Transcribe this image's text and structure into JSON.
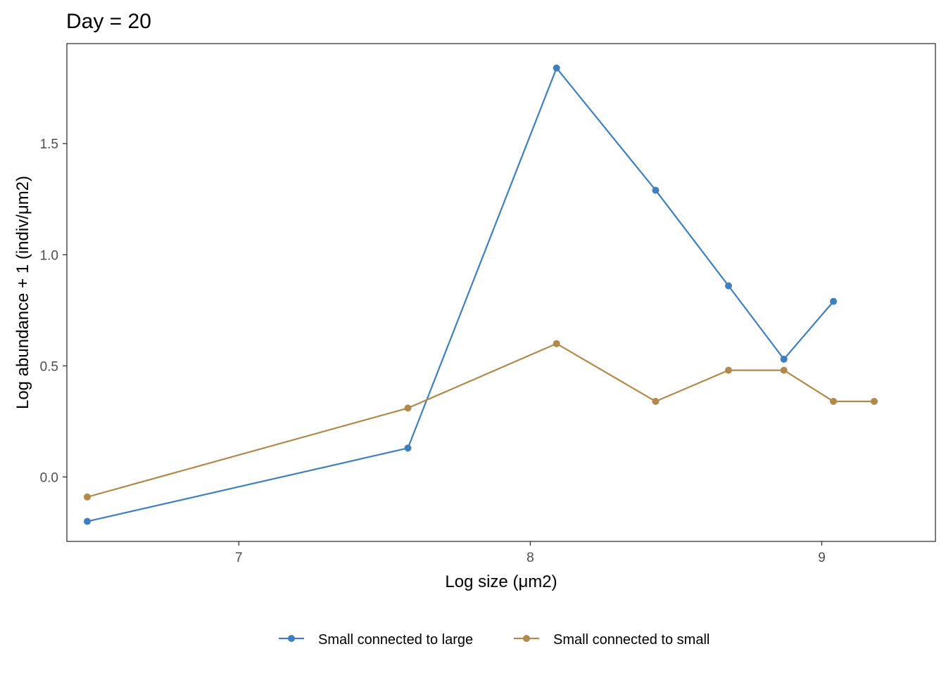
{
  "chart_data": {
    "type": "line",
    "title": "Day = 20",
    "xlabel": "Log size (μm2)",
    "ylabel": "Log abundance + 1 (indiv/μm2)",
    "xlim": [
      6.41,
      9.39
    ],
    "ylim": [
      -0.29,
      1.95
    ],
    "xticks": [
      7,
      8,
      9
    ],
    "xtick_labels": [
      "7",
      "8",
      "9"
    ],
    "yticks": [
      0.0,
      0.5,
      1.0,
      1.5
    ],
    "ytick_labels": [
      "0.0",
      "0.5",
      "1.0",
      "1.5"
    ],
    "grid": false,
    "legend_position": "bottom",
    "series": [
      {
        "name": "Small connected to large",
        "color": "#3f7fbe",
        "x": [
          6.48,
          7.58,
          8.09,
          8.43,
          8.68,
          8.87,
          9.04
        ],
        "y": [
          -0.2,
          0.13,
          1.84,
          1.29,
          0.86,
          0.53,
          0.79
        ]
      },
      {
        "name": "Small connected to small",
        "color": "#b08a4c",
        "x": [
          6.48,
          7.58,
          8.09,
          8.43,
          8.68,
          8.87,
          9.04,
          9.18
        ],
        "y": [
          -0.09,
          0.31,
          0.6,
          0.34,
          0.48,
          0.48,
          0.34,
          0.34
        ]
      }
    ]
  }
}
